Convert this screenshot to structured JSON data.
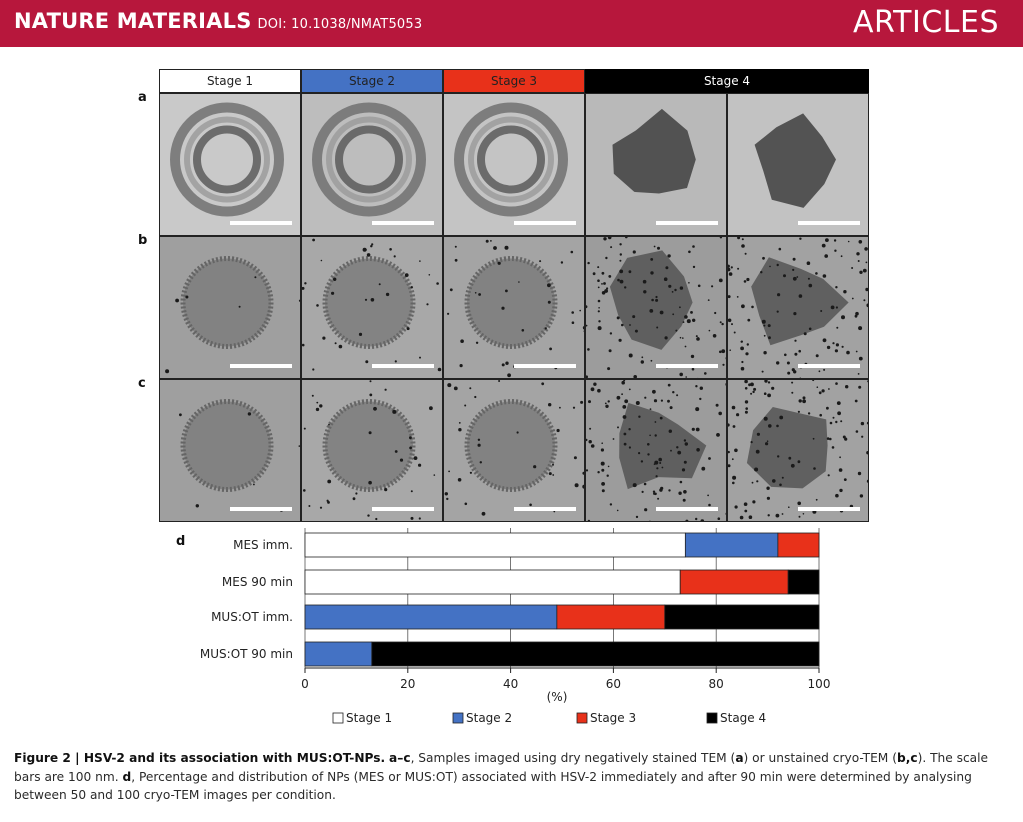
{
  "header": {
    "journal": "NATURE MATERIALS",
    "doi": "DOI: 10.1038/NMAT5053",
    "section": "ARTICLES",
    "color": "#b7173c"
  },
  "figure": {
    "panel_labels": [
      "a",
      "b",
      "c",
      "d"
    ],
    "stages": [
      {
        "label": "Stage 1",
        "color": "#ffffff",
        "text_color": "#111111"
      },
      {
        "label": "Stage 2",
        "color": "#4472c4",
        "text_color": "#111111"
      },
      {
        "label": "Stage 3",
        "color": "#e8311a",
        "text_color": "#111111"
      },
      {
        "label": "Stage 4",
        "color": "#000000",
        "text_color": "#ffffff"
      }
    ],
    "micrograph_rows": [
      {
        "panel": "a",
        "method": "dry negatively stained TEM"
      },
      {
        "panel": "b",
        "method": "unstained cryo-TEM"
      },
      {
        "panel": "c",
        "method": "unstained cryo-TEM"
      }
    ]
  },
  "chart_data": {
    "type": "bar",
    "orientation": "horizontal",
    "stacked": true,
    "panel": "d",
    "categories": [
      "MES imm.",
      "MES 90 min",
      "MUS:OT imm.",
      "MUS:OT 90 min"
    ],
    "series": [
      {
        "name": "Stage 1",
        "color": "#ffffff",
        "values": [
          74,
          73,
          0,
          0
        ]
      },
      {
        "name": "Stage 2",
        "color": "#4472c4",
        "values": [
          18,
          0,
          49,
          13
        ]
      },
      {
        "name": "Stage 3",
        "color": "#e8311a",
        "values": [
          8,
          21,
          21,
          0
        ]
      },
      {
        "name": "Stage 4",
        "color": "#000000",
        "values": [
          0,
          6,
          30,
          87
        ]
      }
    ],
    "xlabel": "(%)",
    "xlim": [
      0,
      100
    ],
    "xticks": [
      0,
      20,
      40,
      60,
      80,
      100
    ],
    "grid": true,
    "legend_position": "bottom"
  },
  "caption": {
    "title": "Figure 2 | HSV-2 and its association with MUS:OT-NPs.",
    "t1": " ",
    "p_ac": "a–c",
    "t2": ", Samples imaged using dry negatively stained TEM (",
    "p_a": "a",
    "t3": ") or unstained cryo-TEM (",
    "p_bc": "b,c",
    "t4": "). The scale bars are 100 nm. ",
    "p_d": "d",
    "t5": ", Percentage and distribution of NPs (MES or MUS:OT) associated with HSV-2 immediately and after 90 min were determined by analysing between 50 and 100 cryo-TEM images per condition."
  }
}
